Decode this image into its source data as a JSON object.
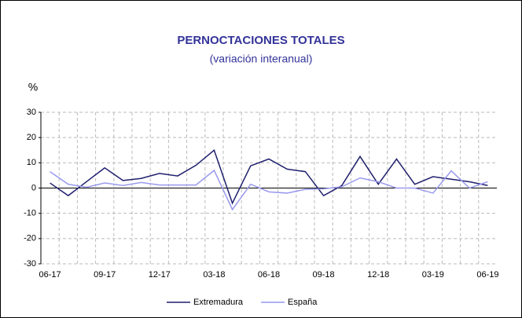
{
  "chart_data": {
    "type": "line",
    "title": "PERNOCTACIONES TOTALES",
    "subtitle": "(variación interanual)",
    "y_label": "%",
    "categories": [
      "06-17",
      null,
      null,
      "09-17",
      null,
      null,
      "12-17",
      null,
      null,
      "03-18",
      null,
      null,
      "06-18",
      null,
      null,
      "09-18",
      null,
      null,
      "12-18",
      null,
      null,
      "03-19",
      null,
      null,
      "06-19"
    ],
    "series": [
      {
        "name": "Extremadura",
        "color": "#1f1f6e",
        "values": [
          2,
          -3,
          2.5,
          8,
          3,
          3.8,
          5.8,
          4.8,
          9,
          15,
          -6,
          8.8,
          11.5,
          7.5,
          6.5,
          -3,
          1,
          12.5,
          1.5,
          11.5,
          1.5,
          4.5,
          3.5,
          2.5,
          1
        ]
      },
      {
        "name": "España",
        "color": "#9999ee",
        "values": [
          6.5,
          1.5,
          0.3,
          2,
          1,
          2.2,
          1.2,
          1.2,
          1.2,
          7,
          -8.5,
          1.5,
          -1.5,
          -2,
          -0.5,
          -0.3,
          0.5,
          4,
          2.5,
          0,
          0,
          -2,
          6.8,
          0,
          2.5
        ]
      }
    ],
    "ylim": [
      -30,
      30
    ],
    "yticks": [
      -30,
      -20,
      -10,
      0,
      10,
      20,
      30
    ],
    "grid": true,
    "legend": "bottom"
  }
}
